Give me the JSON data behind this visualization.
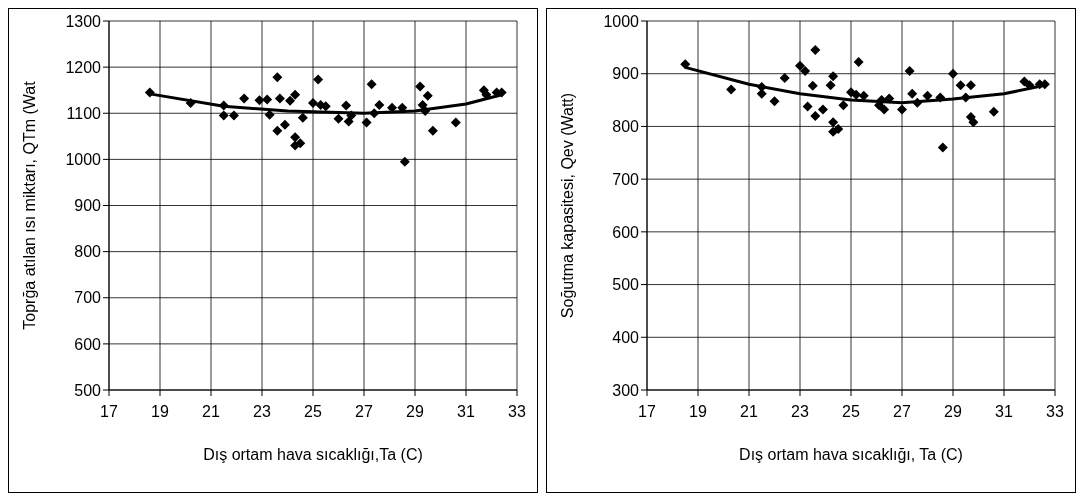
{
  "chart_data": [
    {
      "type": "scatter",
      "xlabel": "Dış ortam hava sıcaklığı,Ta (C)",
      "ylabel": "Toprğa atılan ısı miktarı, QTm (Wat",
      "xlim": [
        17,
        33
      ],
      "xticks": [
        17,
        19,
        21,
        23,
        25,
        27,
        29,
        31,
        33
      ],
      "ylim": [
        500,
        1300
      ],
      "yticks": [
        500,
        600,
        700,
        800,
        900,
        1000,
        1100,
        1200,
        1300
      ],
      "grid": true,
      "legend": false,
      "marker": "diamond",
      "series": [
        {
          "color": "#000000",
          "x": [
            18.6,
            20.2,
            21.5,
            21.5,
            21.9,
            22.3,
            22.9,
            23.2,
            23.3,
            23.6,
            23.7,
            23.6,
            23.9,
            24.1,
            24.3,
            24.3,
            24.3,
            24.5,
            24.6,
            25.0,
            25.2,
            25.3,
            25.5,
            26.0,
            26.3,
            26.4,
            26.5,
            27.1,
            27.3,
            27.4,
            27.6,
            28.1,
            28.5,
            28.6,
            29.2,
            29.3,
            29.4,
            29.5,
            29.7,
            30.6,
            31.7,
            31.8,
            32.2,
            32.4
          ],
          "values": [
            1145,
            1122,
            1117,
            1095,
            1095,
            1132,
            1128,
            1130,
            1097,
            1178,
            1132,
            1062,
            1075,
            1127,
            1140,
            1048,
            1030,
            1035,
            1090,
            1122,
            1173,
            1118,
            1115,
            1088,
            1117,
            1082,
            1095,
            1080,
            1163,
            1100,
            1118,
            1112,
            1112,
            995,
            1158,
            1118,
            1105,
            1138,
            1062,
            1080,
            1150,
            1140,
            1145,
            1145
          ]
        },
        {
          "type": "line",
          "marker": "none",
          "color": "#000000",
          "x": [
            18.6,
            21.5,
            24,
            27,
            29,
            31,
            32.4
          ],
          "values": [
            1142,
            1115,
            1105,
            1100,
            1105,
            1120,
            1140
          ]
        }
      ]
    },
    {
      "type": "scatter",
      "xlabel": "Dış ortam hava sıcaklığı, Ta (C)",
      "ylabel": "Soğutma kapasitesi, Qev (Watt)",
      "xlim": [
        17,
        33
      ],
      "xticks": [
        17,
        19,
        21,
        23,
        25,
        27,
        29,
        31,
        33
      ],
      "ylim": [
        300,
        1000
      ],
      "yticks": [
        300,
        400,
        500,
        600,
        700,
        800,
        900,
        1000
      ],
      "grid": true,
      "legend": false,
      "marker": "diamond",
      "series": [
        {
          "color": "#000000",
          "x": [
            18.5,
            20.3,
            21.5,
            21.5,
            22.0,
            22.4,
            23.0,
            23.2,
            23.3,
            23.6,
            23.5,
            23.6,
            23.9,
            24.2,
            24.3,
            24.3,
            24.3,
            24.5,
            24.7,
            25.0,
            25.3,
            25.2,
            25.5,
            26.1,
            26.2,
            26.3,
            26.5,
            27.0,
            27.3,
            27.4,
            27.6,
            28.0,
            28.5,
            28.6,
            29.0,
            29.3,
            29.5,
            29.7,
            29.7,
            29.8,
            30.6,
            31.8,
            32.0,
            32.4,
            32.6
          ],
          "values": [
            918,
            870,
            875,
            862,
            848,
            892,
            915,
            905,
            838,
            945,
            877,
            820,
            832,
            878,
            895,
            808,
            790,
            795,
            840,
            865,
            922,
            860,
            858,
            840,
            850,
            832,
            853,
            832,
            905,
            862,
            845,
            858,
            855,
            760,
            900,
            878,
            855,
            878,
            818,
            808,
            828,
            885,
            878,
            880,
            880
          ]
        },
        {
          "type": "line",
          "marker": "none",
          "color": "#000000",
          "x": [
            18.5,
            21,
            23,
            25,
            27,
            29,
            31,
            32.6
          ],
          "values": [
            912,
            880,
            862,
            850,
            845,
            852,
            862,
            878
          ]
        }
      ]
    }
  ]
}
